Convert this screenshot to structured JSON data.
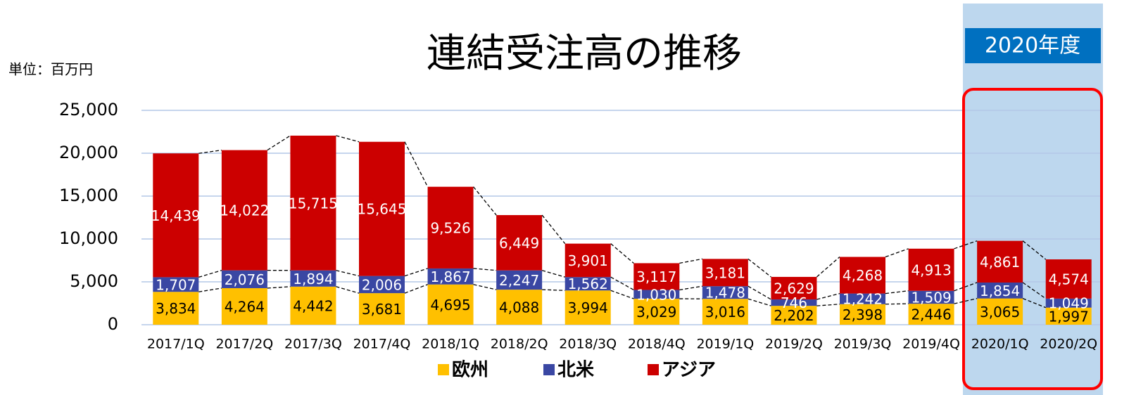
{
  "chart_data": {
    "type": "stacked_bar",
    "title": "連結受注高の推移",
    "annotations": [
      "単位：百万円",
      "2020年度"
    ],
    "categories": [
      "2017/1Q",
      "2017/2Q",
      "2017/3Q",
      "2017/4Q",
      "2018/1Q",
      "2018/2Q",
      "2018/3Q",
      "2018/4Q",
      "2019/1Q",
      "2019/2Q",
      "2019/3Q",
      "2019/4Q",
      "2020/1Q",
      "2020/2Q"
    ],
    "series": [
      {
        "name": "欧州",
        "color": "#ffc000",
        "values": [
          3834,
          4264,
          4442,
          3681,
          4695,
          4088,
          3994,
          3029,
          3016,
          2202,
          2398,
          2446,
          3065,
          1997
        ],
        "value_labels": [
          "3,834",
          "4,264",
          "4,442",
          "3,681",
          "4,695",
          "4,088",
          "3,994",
          "3,029",
          "3,016",
          "2,202",
          "2,398",
          "2,446",
          "3,065",
          "1,997"
        ]
      },
      {
        "name": "北米",
        "color": "#3a47a3",
        "values": [
          1707,
          2076,
          1894,
          2006,
          1867,
          2247,
          1562,
          1030,
          1478,
          746,
          1242,
          1509,
          1854,
          1049
        ],
        "value_labels": [
          "1,707",
          "2,076",
          "1,894",
          "2,006",
          "1,867",
          "2,247",
          "1,562",
          "1,030",
          "1,478",
          "746",
          "1,242",
          "1,509",
          "1,854",
          "1,049"
        ]
      },
      {
        "name": "アジア",
        "color": "#cc0000",
        "values": [
          14439,
          14022,
          15715,
          15645,
          9526,
          6449,
          3901,
          3117,
          3181,
          2629,
          4268,
          4913,
          4861,
          4574
        ],
        "value_labels": [
          "14,439",
          "14,022",
          "15,715",
          "15,645",
          "9,526",
          "6,449",
          "3,901",
          "3,117",
          "3,181",
          "2,629",
          "4,268",
          "4,913",
          "4,861",
          "4,574"
        ]
      }
    ],
    "ylim": [
      0,
      25000
    ],
    "yticks": [
      0,
      {
        "value": 5000,
        "label": "5,000"
      },
      {
        "value": 10000,
        "label": "10,000"
      },
      {
        "value": 15000,
        "label": "15,000"
      },
      {
        "value": 20000,
        "label": "20,000"
      },
      {
        "value": 25000,
        "label": "25,000"
      }
    ],
    "grid": true,
    "legend": "bottom"
  }
}
